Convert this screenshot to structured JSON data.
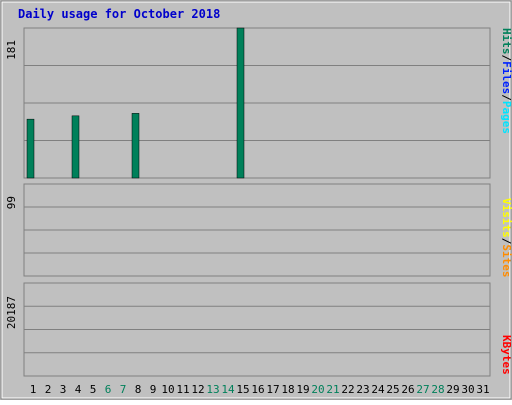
{
  "chart_data": [
    {
      "type": "bar",
      "title": "Daily usage for October 2018",
      "ylabel_top": "181",
      "ylim": [
        0,
        181
      ],
      "x": [
        "1",
        "2",
        "3",
        "4",
        "5",
        "6",
        "7",
        "8",
        "9",
        "10",
        "11",
        "12",
        "13",
        "14",
        "15",
        "16",
        "17",
        "18",
        "19",
        "20",
        "21",
        "22",
        "23",
        "24",
        "25",
        "26",
        "27",
        "28",
        "29",
        "30",
        "31"
      ],
      "weekend_days": [
        "6",
        "7",
        "13",
        "14",
        "20",
        "21",
        "27",
        "28"
      ],
      "series": [
        {
          "name": "Hits",
          "color": "#00805A",
          "values": [
            71,
            0,
            0,
            75,
            0,
            0,
            0,
            78,
            0,
            0,
            0,
            0,
            0,
            0,
            181,
            0,
            0,
            0,
            0,
            0,
            0,
            0,
            0,
            0,
            0,
            0,
            0,
            0,
            0,
            0,
            0
          ]
        },
        {
          "name": "Files",
          "color": "#0022FF",
          "values": [
            0,
            0,
            0,
            0,
            0,
            0,
            0,
            0,
            0,
            0,
            0,
            0,
            0,
            0,
            0,
            0,
            0,
            0,
            0,
            0,
            0,
            0,
            0,
            0,
            0,
            0,
            0,
            0,
            0,
            0,
            0
          ]
        },
        {
          "name": "Pages",
          "color": "#00E4FF",
          "values": [
            0,
            0,
            0,
            0,
            0,
            0,
            0,
            0,
            0,
            0,
            0,
            0,
            0,
            0,
            0,
            0,
            0,
            0,
            0,
            0,
            0,
            0,
            0,
            0,
            0,
            0,
            0,
            0,
            0,
            0,
            0
          ]
        }
      ]
    },
    {
      "type": "bar",
      "ylabel_top": "99",
      "ylim": [
        0,
        99
      ],
      "series": [
        {
          "name": "Visits",
          "color": "#FFFF00",
          "values": []
        },
        {
          "name": "Sites",
          "color": "#FF8C00",
          "values": []
        }
      ]
    },
    {
      "type": "bar",
      "ylabel_top": "20187",
      "ylim": [
        0,
        20187
      ],
      "series": [
        {
          "name": "KBytes",
          "color": "#FF0000",
          "values": []
        }
      ]
    }
  ],
  "legend_top": {
    "pages": "Pages",
    "files": "Files",
    "hits": "Hits",
    "sep": "/"
  },
  "legend_mid": {
    "sites": "Sites",
    "visits": "Visits",
    "sep": "/"
  },
  "legend_bot": {
    "kbytes": "KBytes"
  }
}
